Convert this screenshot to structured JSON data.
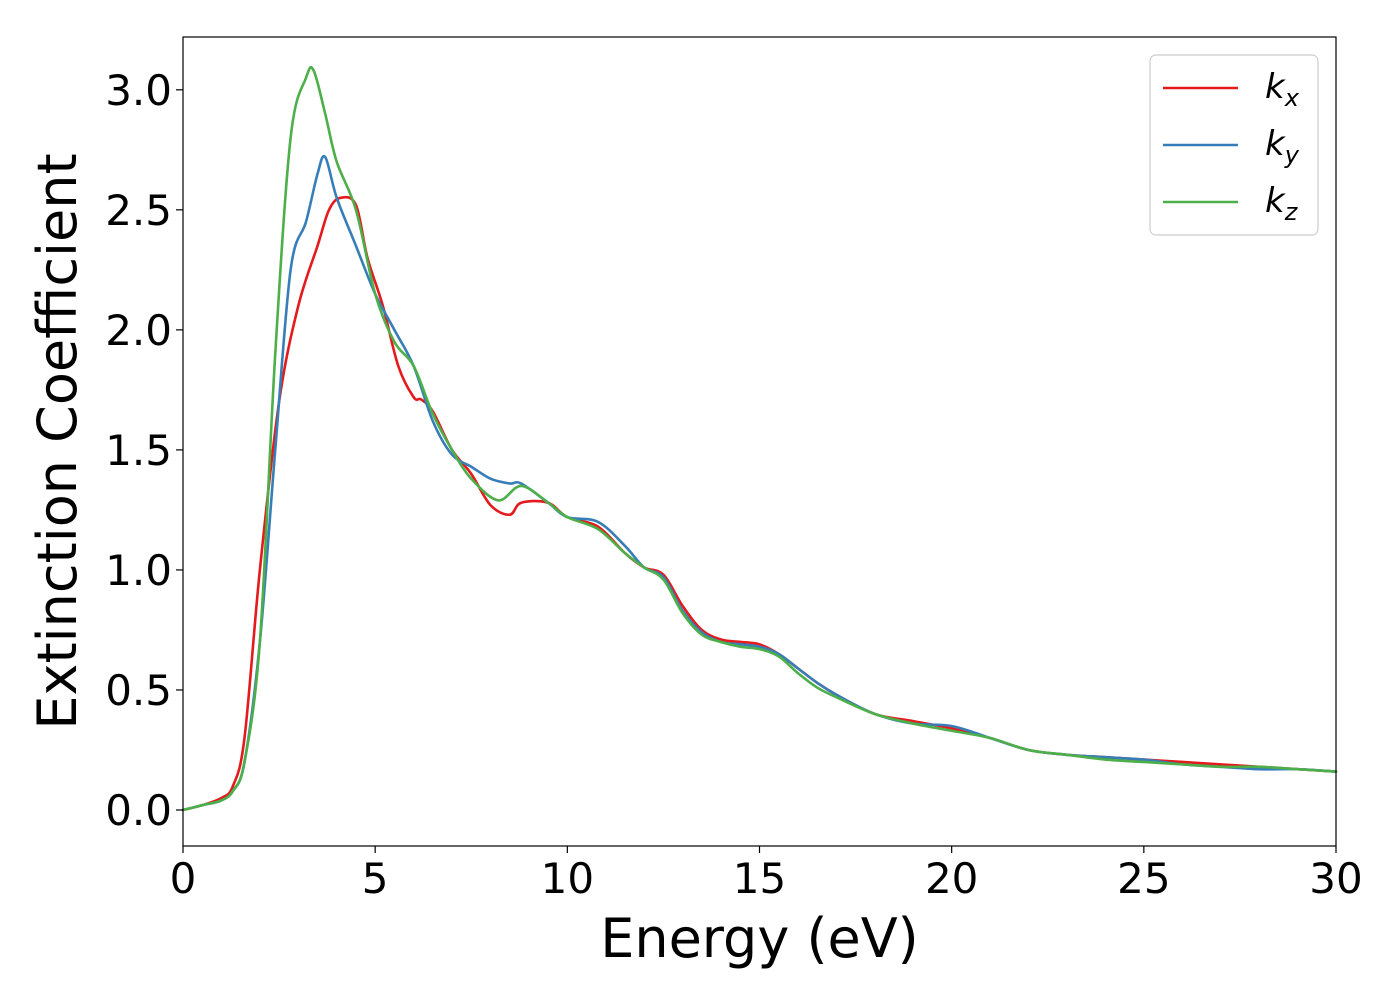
{
  "chart_data": {
    "type": "line",
    "title": "",
    "xlabel": "Energy (eV)",
    "ylabel": "Extinction Coefficient",
    "xlim": [
      0,
      30
    ],
    "ylim": [
      -0.15,
      3.22
    ],
    "xticks": [
      0,
      5,
      10,
      15,
      20,
      25,
      30
    ],
    "xtick_labels": [
      "0",
      "5",
      "10",
      "15",
      "20",
      "25",
      "30"
    ],
    "yticks": [
      0.0,
      0.5,
      1.0,
      1.5,
      2.0,
      2.5,
      3.0
    ],
    "ytick_labels": [
      "0.0",
      "0.5",
      "1.0",
      "1.5",
      "2.0",
      "2.5",
      "3.0"
    ],
    "grid": false,
    "legend_position": "top-right",
    "series": [
      {
        "name": "k_x",
        "legend_base": "k",
        "legend_sub": "x",
        "color": "#e41a1c",
        "x": [
          0,
          0.5,
          1.0,
          1.3,
          1.6,
          2.0,
          2.5,
          3.0,
          3.5,
          3.8,
          4.1,
          4.5,
          4.8,
          5.2,
          5.6,
          6.0,
          6.2,
          6.5,
          7.0,
          7.5,
          8.0,
          8.5,
          8.8,
          9.5,
          10.0,
          10.8,
          11.5,
          12.0,
          12.5,
          13.0,
          13.5,
          14.0,
          14.5,
          15.0,
          15.5,
          16.0,
          16.5,
          17.0,
          18.0,
          19.0,
          20.0,
          21.0,
          22.0,
          23.0,
          24.0,
          25.0,
          26.0,
          27.0,
          28.0,
          29.0,
          30.0
        ],
        "y": [
          0.0,
          0.02,
          0.05,
          0.1,
          0.3,
          1.0,
          1.7,
          2.1,
          2.35,
          2.5,
          2.55,
          2.52,
          2.3,
          2.1,
          1.85,
          1.72,
          1.71,
          1.66,
          1.5,
          1.4,
          1.27,
          1.23,
          1.28,
          1.28,
          1.22,
          1.18,
          1.07,
          1.01,
          0.98,
          0.85,
          0.75,
          0.71,
          0.7,
          0.69,
          0.65,
          0.59,
          0.53,
          0.48,
          0.4,
          0.37,
          0.34,
          0.3,
          0.25,
          0.23,
          0.22,
          0.21,
          0.2,
          0.19,
          0.18,
          0.17,
          0.16
        ]
      },
      {
        "name": "k_y",
        "legend_base": "k",
        "legend_sub": "y",
        "color": "#377eb8",
        "x": [
          0,
          0.5,
          1.0,
          1.3,
          1.6,
          2.0,
          2.4,
          2.8,
          3.2,
          3.5,
          3.7,
          4.0,
          4.5,
          5.0,
          5.5,
          6.0,
          6.5,
          7.0,
          7.5,
          8.0,
          8.5,
          8.8,
          9.5,
          10.0,
          10.8,
          11.5,
          12.0,
          12.5,
          13.0,
          13.5,
          14.0,
          14.5,
          15.0,
          15.5,
          16.0,
          16.5,
          17.0,
          18.0,
          19.0,
          20.0,
          21.0,
          22.0,
          23.0,
          24.0,
          25.0,
          26.0,
          27.0,
          28.0,
          29.0,
          30.0
        ],
        "y": [
          0.0,
          0.02,
          0.04,
          0.08,
          0.2,
          0.7,
          1.5,
          2.25,
          2.45,
          2.65,
          2.72,
          2.55,
          2.35,
          2.15,
          2.0,
          1.85,
          1.62,
          1.48,
          1.43,
          1.38,
          1.36,
          1.36,
          1.28,
          1.22,
          1.2,
          1.1,
          1.01,
          0.97,
          0.83,
          0.74,
          0.7,
          0.69,
          0.68,
          0.65,
          0.59,
          0.53,
          0.48,
          0.4,
          0.36,
          0.35,
          0.3,
          0.25,
          0.23,
          0.22,
          0.21,
          0.19,
          0.18,
          0.17,
          0.17,
          0.16
        ]
      },
      {
        "name": "k_z",
        "legend_base": "k",
        "legend_sub": "z",
        "color": "#4daf4a",
        "x": [
          0,
          0.5,
          1.0,
          1.3,
          1.6,
          2.0,
          2.4,
          2.8,
          3.2,
          3.4,
          3.7,
          4.0,
          4.5,
          5.0,
          5.5,
          6.0,
          6.5,
          7.0,
          7.5,
          8.2,
          8.8,
          9.5,
          10.0,
          10.8,
          11.5,
          12.0,
          12.5,
          13.0,
          13.5,
          14.0,
          14.5,
          15.0,
          15.5,
          16.0,
          16.5,
          17.0,
          18.0,
          19.0,
          20.0,
          21.0,
          22.0,
          23.0,
          24.0,
          25.0,
          26.0,
          27.0,
          28.0,
          29.0,
          30.0
        ],
        "y": [
          0.0,
          0.02,
          0.04,
          0.08,
          0.2,
          0.7,
          1.9,
          2.8,
          3.05,
          3.08,
          2.9,
          2.7,
          2.5,
          2.15,
          1.95,
          1.85,
          1.65,
          1.5,
          1.38,
          1.29,
          1.35,
          1.28,
          1.22,
          1.17,
          1.07,
          1.01,
          0.96,
          0.82,
          0.73,
          0.7,
          0.68,
          0.67,
          0.64,
          0.57,
          0.51,
          0.47,
          0.4,
          0.36,
          0.33,
          0.3,
          0.25,
          0.23,
          0.21,
          0.2,
          0.19,
          0.18,
          0.18,
          0.17,
          0.16
        ]
      }
    ]
  }
}
